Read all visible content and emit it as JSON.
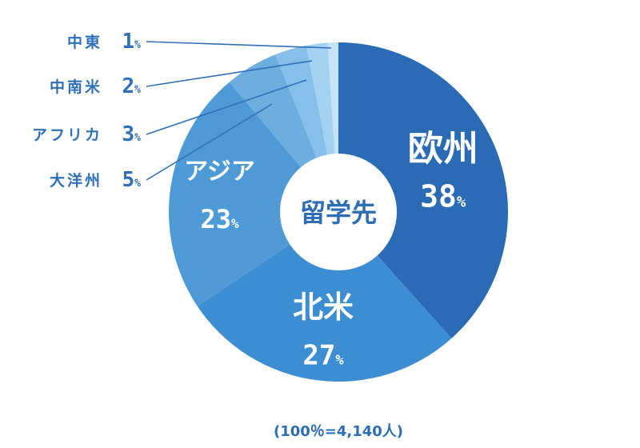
{
  "chart_data": {
    "type": "pie",
    "center_label": "留学先",
    "categories": [
      "欧州",
      "北米",
      "アジア",
      "大洋州",
      "アフリカ",
      "中南米",
      "中東"
    ],
    "values": [
      38,
      27,
      23,
      5,
      3,
      2,
      1
    ],
    "value_texts": [
      "38",
      "27",
      "23",
      "5",
      "3",
      "2",
      "1"
    ],
    "unit": "%",
    "colors": [
      "#2b6bb5",
      "#3d8dd2",
      "#4e9ad6",
      "#6caedf",
      "#85bfea",
      "#a3d1f2",
      "#c6e4f8"
    ],
    "label_placement": [
      "inside",
      "inside",
      "inside",
      "outside-left",
      "outside-left",
      "outside-left",
      "outside-left"
    ],
    "footnote": "(100％=4,140人)"
  }
}
